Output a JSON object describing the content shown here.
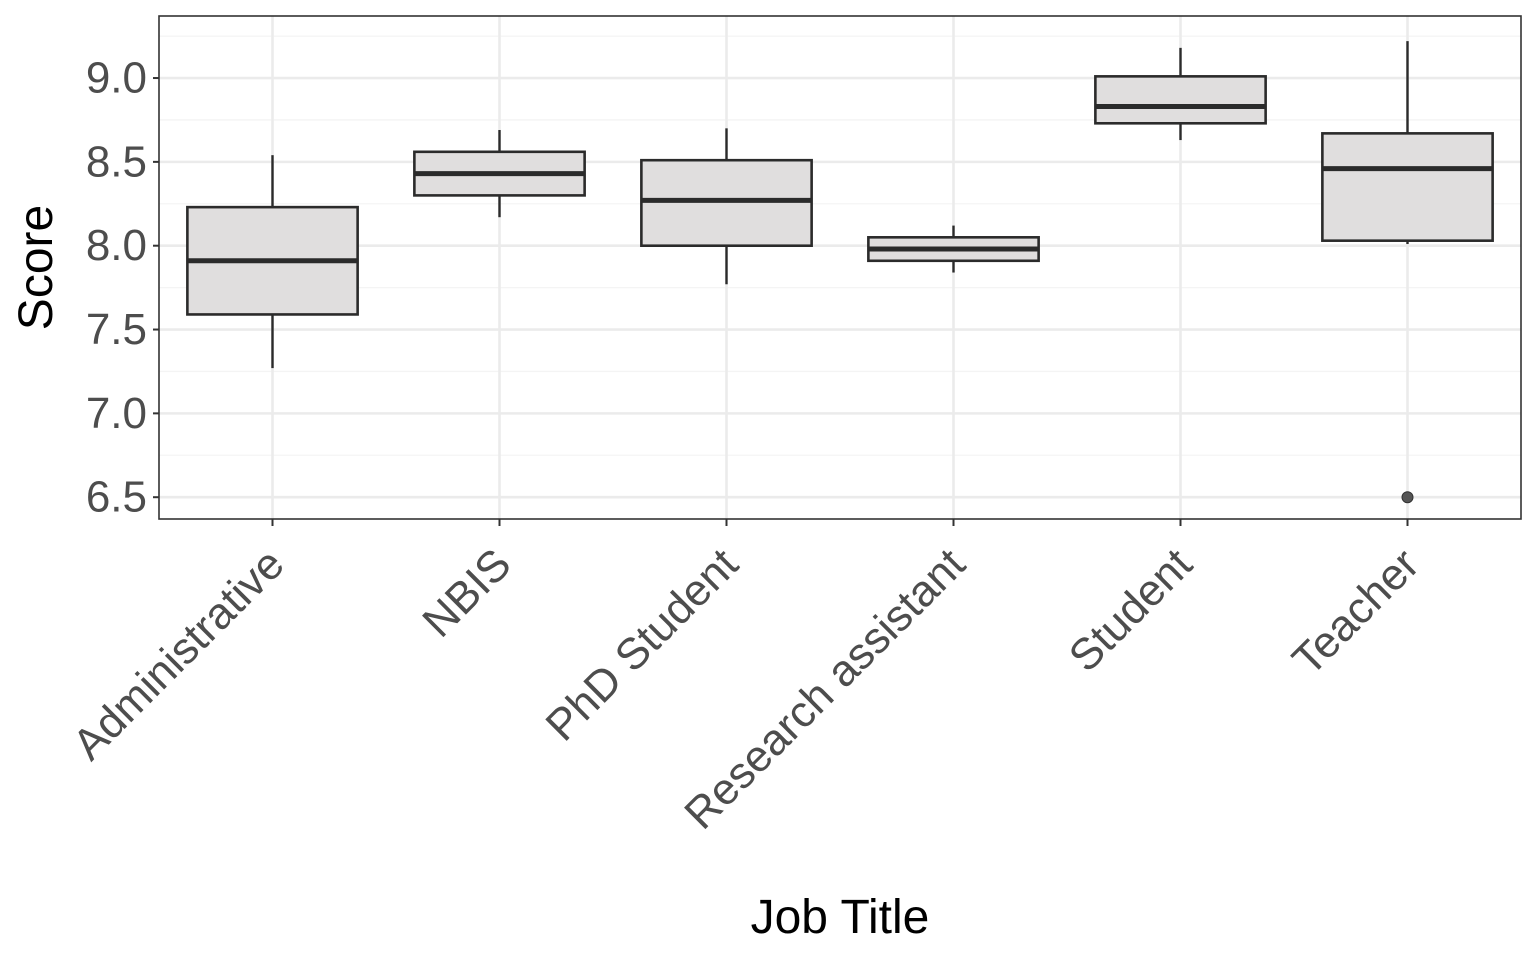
{
  "chart_data": {
    "type": "boxplot",
    "title": "",
    "xlabel": "Job Title",
    "ylabel": "Score",
    "ylim": [
      6.37,
      9.37
    ],
    "yticks": [
      6.5,
      7.0,
      7.5,
      8.0,
      8.5,
      9.0
    ],
    "ytick_labels": [
      "6.5",
      "7.0",
      "7.5",
      "8.0",
      "8.5",
      "9.0"
    ],
    "grid": true,
    "legend": "none",
    "categories": [
      "Administrative",
      "NBIS",
      "PhD Student",
      "Research assistant",
      "Student",
      "Teacher"
    ],
    "boxes": [
      {
        "category": "Administrative",
        "whisker_low": 7.27,
        "q1": 7.59,
        "median": 7.91,
        "q3": 8.23,
        "whisker_high": 8.54,
        "outliers": []
      },
      {
        "category": "NBIS",
        "whisker_low": 8.17,
        "q1": 8.3,
        "median": 8.43,
        "q3": 8.56,
        "whisker_high": 8.69,
        "outliers": []
      },
      {
        "category": "PhD Student",
        "whisker_low": 7.77,
        "q1": 8.0,
        "median": 8.27,
        "q3": 8.51,
        "whisker_high": 8.7,
        "outliers": []
      },
      {
        "category": "Research assistant",
        "whisker_low": 7.84,
        "q1": 7.91,
        "median": 7.98,
        "q3": 8.05,
        "whisker_high": 8.12,
        "outliers": []
      },
      {
        "category": "Student",
        "whisker_low": 8.63,
        "q1": 8.73,
        "median": 8.83,
        "q3": 9.01,
        "whisker_high": 9.18,
        "outliers": []
      },
      {
        "category": "Teacher",
        "whisker_low": 8.01,
        "q1": 8.03,
        "median": 8.46,
        "q3": 8.67,
        "whisker_high": 9.22,
        "outliers": [
          6.5
        ]
      }
    ],
    "colors": {
      "box_fill": "#e0dede",
      "box_stroke": "#2b2b2b",
      "grid_major": "#ebebeb",
      "grid_minor": "#f4f4f4",
      "panel_border": "#333333",
      "tick_text": "#4d4d4d",
      "outlier": "#555555"
    }
  }
}
